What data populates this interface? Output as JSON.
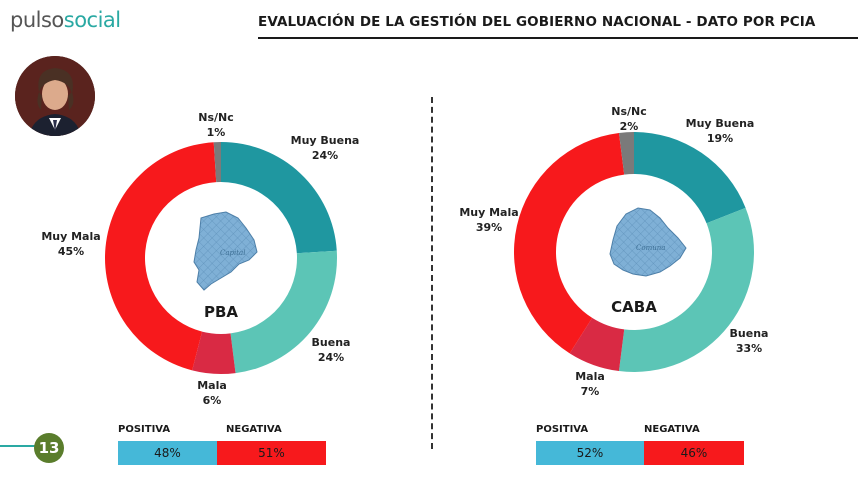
{
  "header": {
    "logo_word1": "pulso",
    "logo_word2": "social",
    "title": "EVALUACIÓN DE LA GESTIÓN DEL GOBIERNO NACIONAL - DATO POR PCIA"
  },
  "footer": {
    "page_number": "13"
  },
  "colors": {
    "muy_buena": "#1f97a0",
    "buena": "#5cc5b6",
    "mala": "#d92a44",
    "muy_mala": "#f7191c",
    "ns_nc": "#7a7a7a",
    "positiva": "#45b8d8",
    "negativa": "#f7191c"
  },
  "chart_data": [
    {
      "type": "pie",
      "center_label": "PBA",
      "map_label": "Capital",
      "slices": [
        {
          "label": "Muy Buena",
          "value": 24,
          "display": "24%"
        },
        {
          "label": "Buena",
          "value": 24,
          "display": "24%"
        },
        {
          "label": "Mala",
          "value": 6,
          "display": "6%"
        },
        {
          "label": "Muy Mala",
          "value": 45,
          "display": "45%"
        },
        {
          "label": "Ns/Nc",
          "value": 1,
          "display": "1%"
        }
      ],
      "summary": {
        "positiva_label": "POSITIVA",
        "positiva_value": "48%",
        "negativa_label": "NEGATIVA",
        "negativa_value": "51%"
      }
    },
    {
      "type": "pie",
      "center_label": "CABA",
      "map_label": "Comuna",
      "slices": [
        {
          "label": "Muy Buena",
          "value": 19,
          "display": "19%"
        },
        {
          "label": "Buena",
          "value": 33,
          "display": "33%"
        },
        {
          "label": "Mala",
          "value": 7,
          "display": "7%"
        },
        {
          "label": "Muy Mala",
          "value": 39,
          "display": "39%"
        },
        {
          "label": "Ns/Nc",
          "value": 2,
          "display": "2%"
        }
      ],
      "summary": {
        "positiva_label": "POSITIVA",
        "positiva_value": "52%",
        "negativa_label": "NEGATIVA",
        "negativa_value": "46%"
      }
    }
  ]
}
